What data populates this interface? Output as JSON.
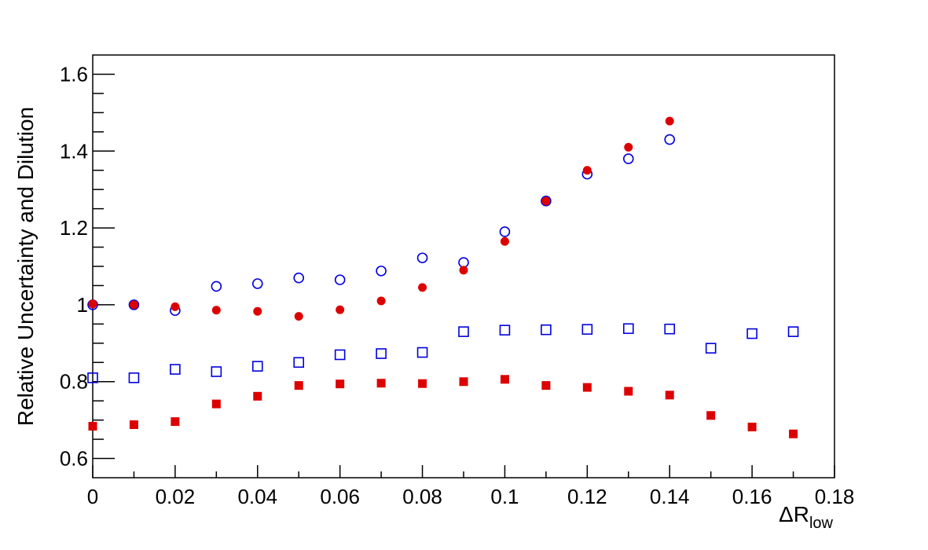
{
  "chart_data": {
    "type": "scatter",
    "xlabel": "ΔR",
    "xlabel_sub": "low",
    "ylabel": "Relative Uncertainty and Dilution",
    "xlim": [
      0,
      0.18
    ],
    "ylim": [
      0.55,
      1.65
    ],
    "x_ticks": [
      0,
      0.02,
      0.04,
      0.06,
      0.08,
      0.1,
      0.12,
      0.14,
      0.16,
      0.18
    ],
    "x_tick_labels": [
      "0",
      "0.02",
      "0.04",
      "0.06",
      "0.08",
      "0.1",
      "0.12",
      "0.14",
      "0.16",
      "0.18"
    ],
    "y_ticks": [
      0.6,
      0.8,
      1.0,
      1.2,
      1.4,
      1.6
    ],
    "y_tick_labels": [
      "0.6",
      "0.8",
      "1",
      "1.2",
      "1.4",
      "1.6"
    ],
    "grid": false,
    "series": [
      {
        "marker": "circle-open",
        "color": "#0000dd",
        "x": [
          0,
          0.01,
          0.02,
          0.03,
          0.04,
          0.05,
          0.06,
          0.07,
          0.08,
          0.09,
          0.1,
          0.11,
          0.12,
          0.13,
          0.14
        ],
        "y": [
          1.0,
          1.0,
          0.985,
          1.048,
          1.055,
          1.07,
          1.065,
          1.088,
          1.122,
          1.11,
          1.19,
          1.27,
          1.34,
          1.38,
          1.43
        ]
      },
      {
        "marker": "circle-filled",
        "color": "#dd0000",
        "x": [
          0,
          0.01,
          0.02,
          0.03,
          0.04,
          0.05,
          0.06,
          0.07,
          0.08,
          0.09,
          0.1,
          0.11,
          0.12,
          0.13,
          0.14
        ],
        "y": [
          1.002,
          1.0,
          0.995,
          0.986,
          0.983,
          0.97,
          0.987,
          1.01,
          1.045,
          1.09,
          1.165,
          1.27,
          1.35,
          1.41,
          1.478
        ]
      },
      {
        "marker": "square-open",
        "color": "#0000dd",
        "x": [
          0,
          0.01,
          0.02,
          0.03,
          0.04,
          0.05,
          0.06,
          0.07,
          0.08,
          0.09,
          0.1,
          0.11,
          0.12,
          0.13,
          0.14,
          0.15,
          0.16,
          0.17
        ],
        "y": [
          0.81,
          0.81,
          0.832,
          0.826,
          0.84,
          0.85,
          0.87,
          0.873,
          0.876,
          0.93,
          0.934,
          0.935,
          0.936,
          0.938,
          0.937,
          0.887,
          0.925,
          0.93
        ]
      },
      {
        "marker": "square-filled",
        "color": "#dd0000",
        "x": [
          0,
          0.01,
          0.02,
          0.03,
          0.04,
          0.05,
          0.06,
          0.07,
          0.08,
          0.09,
          0.1,
          0.11,
          0.12,
          0.13,
          0.14,
          0.15,
          0.16,
          0.17
        ],
        "y": [
          0.684,
          0.688,
          0.696,
          0.742,
          0.762,
          0.79,
          0.794,
          0.796,
          0.795,
          0.8,
          0.806,
          0.79,
          0.785,
          0.775,
          0.765,
          0.712,
          0.682,
          0.664
        ]
      }
    ]
  }
}
